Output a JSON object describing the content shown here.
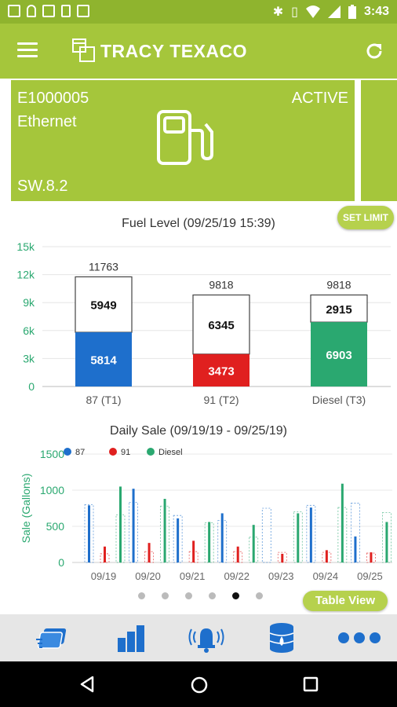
{
  "status_bar": {
    "time": "3:43"
  },
  "app_bar": {
    "title": "TRACY TEXACO"
  },
  "site_card": {
    "id": "E1000005",
    "connection": "Ethernet",
    "software": "SW.8.2",
    "status": "ACTIVE"
  },
  "fuel_level": {
    "set_limit_label": "SET LIMIT",
    "chart_data": {
      "type": "bar",
      "title": "Fuel Level (09/25/19 15:39)",
      "categories": [
        "87 (T1)",
        "91 (T2)",
        "Diesel (T3)"
      ],
      "ylim": [
        0,
        15000
      ],
      "y_ticks": [
        "0",
        "3k",
        "6k",
        "9k",
        "12k",
        "15k"
      ],
      "fuel": [
        5814,
        3473,
        6903
      ],
      "ullage": [
        5949,
        6345,
        2915
      ],
      "capacity": [
        11763,
        9818,
        9818
      ],
      "colors": [
        "#1e6fcc",
        "#e0201f",
        "#2aa870"
      ]
    }
  },
  "daily_sale": {
    "chart_data": {
      "type": "bar",
      "title": "Daily Sale (09/19/19 - 09/25/19)",
      "ylabel": "Sale (Gallons)",
      "ylim": [
        0,
        1500
      ],
      "y_ticks": [
        "0",
        "500",
        "1000",
        "1500"
      ],
      "categories": [
        "09/19",
        "09/20",
        "09/21",
        "09/22",
        "09/23",
        "09/24",
        "09/25"
      ],
      "series": [
        {
          "name": "87",
          "color": "#1e6fcc",
          "values": [
            790,
            1020,
            610,
            680,
            0,
            760,
            360
          ],
          "outline": [
            800,
            830,
            650,
            580,
            750,
            790,
            820
          ]
        },
        {
          "name": "91",
          "color": "#e0201f",
          "values": [
            220,
            270,
            300,
            220,
            120,
            170,
            140
          ],
          "outline": [
            120,
            150,
            150,
            150,
            140,
            140,
            130
          ]
        },
        {
          "name": "Diesel",
          "color": "#2aa870",
          "values": [
            1050,
            880,
            560,
            520,
            680,
            1090,
            560
          ],
          "outline": [
            660,
            780,
            550,
            350,
            700,
            760,
            690
          ]
        }
      ]
    }
  },
  "pager": {
    "pages": 6,
    "active": 4,
    "table_view_label": "Table View"
  },
  "bottom_nav": {
    "items": [
      "payment-card-icon",
      "bar-chart-icon",
      "alarm-bell-icon",
      "fuel-tank-icon",
      "more-dots-icon"
    ]
  }
}
